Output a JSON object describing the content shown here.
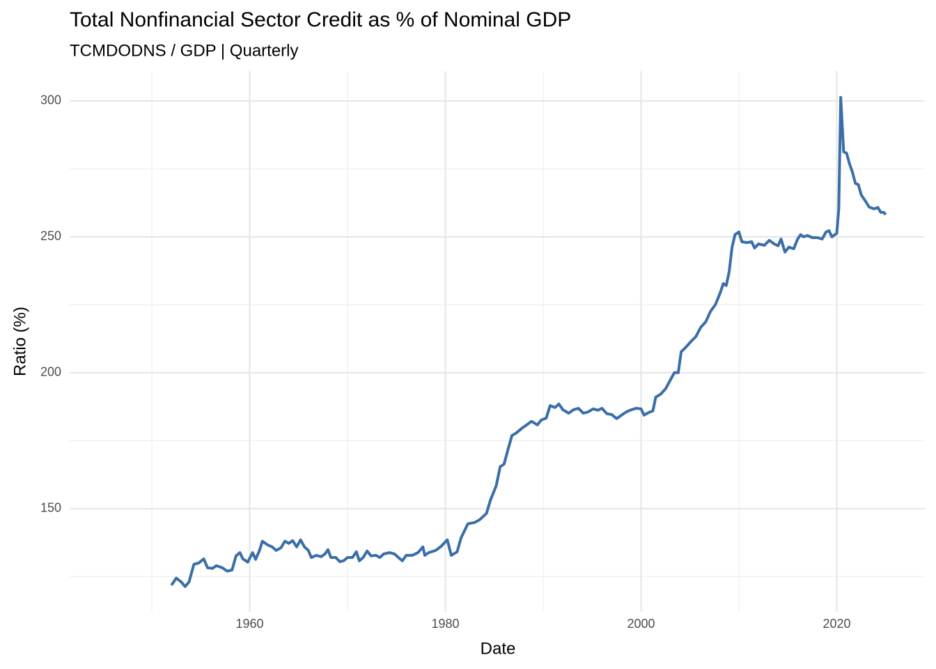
{
  "chart_data": {
    "type": "line",
    "title": "Total Nonfinancial Sector Credit as % of Nominal GDP",
    "subtitle": "TCMDODNS / GDP | Quarterly",
    "x_label": "Date",
    "y_label": "Ratio (%)",
    "xlim": [
      1941.6,
      2029
    ],
    "xticks": [
      1960,
      1980,
      2000,
      2020
    ],
    "xminor": [
      1950,
      1970,
      1990,
      2010
    ],
    "ylim": [
      112,
      311
    ],
    "yticks": [
      150,
      200,
      250,
      300
    ],
    "yminor": [
      125,
      175,
      225,
      275
    ],
    "grid": true,
    "series": [
      {
        "name": "TCMDODNS / GDP",
        "color": "#3b6ea8",
        "x": [
          1952.0,
          1952.5,
          1953.0,
          1953.4,
          1953.8,
          1954.3,
          1954.8,
          1955.3,
          1955.7,
          1956.2,
          1956.6,
          1957.2,
          1957.7,
          1958.2,
          1958.6,
          1959.0,
          1959.3,
          1959.8,
          1960.3,
          1960.6,
          1961.0,
          1961.3,
          1961.8,
          1962.3,
          1962.7,
          1963.2,
          1963.6,
          1964.0,
          1964.4,
          1964.8,
          1965.2,
          1965.6,
          1966.0,
          1966.3,
          1966.8,
          1967.3,
          1967.7,
          1968.0,
          1968.3,
          1968.8,
          1969.2,
          1969.6,
          1970.0,
          1970.5,
          1970.9,
          1971.2,
          1971.6,
          1972.0,
          1972.4,
          1972.9,
          1973.3,
          1973.7,
          1974.3,
          1974.8,
          1975.2,
          1975.6,
          1976.0,
          1976.6,
          1977.2,
          1977.7,
          1977.9,
          1978.3,
          1979.0,
          1979.5,
          1980.2,
          1980.6,
          1981.2,
          1981.6,
          1982.3,
          1983.0,
          1983.5,
          1984.2,
          1984.6,
          1985.2,
          1985.6,
          1986.0,
          1986.4,
          1986.8,
          1987.2,
          1987.8,
          1988.3,
          1988.8,
          1989.4,
          1989.8,
          1990.3,
          1990.7,
          1991.2,
          1991.6,
          1992.0,
          1992.6,
          1993.1,
          1993.6,
          1994.1,
          1994.6,
          1995.1,
          1995.6,
          1996.0,
          1996.5,
          1997.0,
          1997.5,
          1998.0,
          1998.5,
          1999.0,
          1999.5,
          2000.0,
          2000.3,
          2000.8,
          2001.2,
          2001.5,
          2002.0,
          2002.5,
          2003.0,
          2003.4,
          2003.8,
          2004.1,
          2004.6,
          2005.1,
          2005.6,
          2006.1,
          2006.6,
          2007.1,
          2007.6,
          2008.1,
          2008.4,
          2008.7,
          2009.0,
          2009.3,
          2009.6,
          2010.0,
          2010.3,
          2010.8,
          2011.3,
          2011.6,
          2012.0,
          2012.6,
          2013.1,
          2013.6,
          2014.0,
          2014.3,
          2014.7,
          2015.1,
          2015.6,
          2016.0,
          2016.3,
          2016.6,
          2017.0,
          2017.5,
          2018.0,
          2018.5,
          2018.9,
          2019.2,
          2019.5,
          2020.0,
          2020.2,
          2020.4,
          2020.7,
          2021.0,
          2021.3,
          2021.6,
          2021.9,
          2022.2,
          2022.5,
          2022.9,
          2023.3,
          2023.8,
          2024.2,
          2024.5,
          2024.8,
          2025.0
        ],
        "values": [
          121.8,
          124.4,
          123,
          121.3,
          123,
          129.5,
          130,
          131.5,
          128.2,
          128,
          129,
          128.2,
          127,
          127.4,
          132.6,
          133.8,
          131.5,
          130.3,
          133.8,
          131.3,
          134.6,
          138,
          136.7,
          135.9,
          134.6,
          135.6,
          138,
          137.2,
          138.2,
          135.9,
          138.5,
          135.9,
          134.6,
          132,
          132.8,
          132.3,
          133.3,
          134.9,
          132,
          132,
          130.5,
          130.8,
          132,
          132,
          134.1,
          130.8,
          132,
          134.4,
          132.6,
          132.8,
          132,
          133.3,
          133.8,
          133.3,
          132,
          130.8,
          132.8,
          132.8,
          133.8,
          135.9,
          132.8,
          133.8,
          134.6,
          135.9,
          138.5,
          132.8,
          134.1,
          139.2,
          144.4,
          144.9,
          145.9,
          148.2,
          153.1,
          158.5,
          165.4,
          166.4,
          171.8,
          176.9,
          177.7,
          179.5,
          180.8,
          182.1,
          180.8,
          182.6,
          183.3,
          187.9,
          187.2,
          188.5,
          186.4,
          185.1,
          186.4,
          186.9,
          185.1,
          185.6,
          186.7,
          186.2,
          186.9,
          184.9,
          184.6,
          183.1,
          184.4,
          185.6,
          186.4,
          186.9,
          186.7,
          184.4,
          185.4,
          185.9,
          191,
          192.1,
          194.1,
          197.4,
          200,
          200,
          207.7,
          209.5,
          211.5,
          213.3,
          216.7,
          218.7,
          222.6,
          225.1,
          229.5,
          232.8,
          232.1,
          237.2,
          246.2,
          250.8,
          251.8,
          248.2,
          247.9,
          248.2,
          245.9,
          247.4,
          246.9,
          248.7,
          247.4,
          246.7,
          249.2,
          244.4,
          246.2,
          245.6,
          249.2,
          250.8,
          250,
          250.5,
          249.7,
          249.7,
          249.2,
          251.8,
          252.3,
          250,
          251.3,
          260.3,
          301.3,
          281.3,
          280.8,
          276.9,
          273.8,
          269.7,
          269.2,
          265.4,
          263.3,
          261,
          260.3,
          260.8,
          259,
          259,
          258.2
        ]
      }
    ]
  }
}
